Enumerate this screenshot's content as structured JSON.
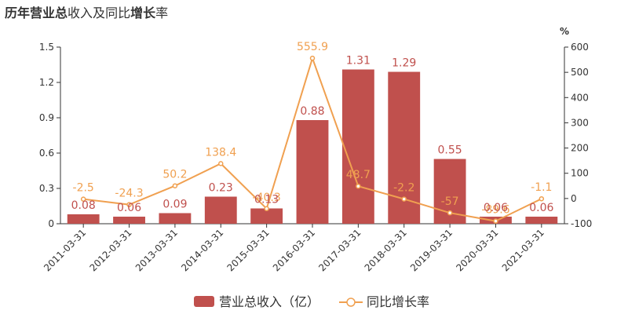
{
  "chart_data": {
    "type": "bar",
    "title": "历年营业总收入及同比增长率",
    "title_parts": [
      {
        "text": "历年",
        "bold": true
      },
      {
        "text": "营业总",
        "bold": true
      },
      {
        "text": "收入",
        "bold": false
      },
      {
        "text": "及",
        "bold": false
      },
      {
        "text": "同比",
        "bold": false
      },
      {
        "text": "增长",
        "bold": true
      },
      {
        "text": "率",
        "bold": false
      }
    ],
    "categories": [
      "2011-03-31",
      "2012-03-31",
      "2013-03-31",
      "2014-03-31",
      "2015-03-31",
      "2016-03-31",
      "2017-03-31",
      "2018-03-31",
      "2019-03-31",
      "2020-03-31",
      "2021-03-31"
    ],
    "series": [
      {
        "name": "营业总收入（亿）",
        "type": "bar",
        "axis": "left",
        "color": "#c0504d",
        "values": [
          0.08,
          0.06,
          0.09,
          0.23,
          0.13,
          0.88,
          1.31,
          1.29,
          0.55,
          0.06,
          0.06
        ],
        "labels": [
          "0.08",
          "0.06",
          "0.09",
          "0.23",
          "0.13",
          "0.88",
          "1.31",
          "1.29",
          "0.55",
          "0.06",
          "0.06"
        ]
      },
      {
        "name": "同比增长率",
        "type": "line",
        "axis": "right",
        "color": "#f0a050",
        "values": [
          -2.5,
          -24.3,
          50.2,
          138.4,
          -40.3,
          555.9,
          48.7,
          -2.2,
          -57,
          -89.6,
          -1.1
        ],
        "labels": [
          "-2.5",
          "-24.3",
          "50.2",
          "138.4",
          "-40.3",
          "555.9",
          "48.7",
          "-2.2",
          "-57",
          "-89.6",
          "-1.1"
        ]
      }
    ],
    "y_left": {
      "min": 0,
      "max": 1.5,
      "ticks": [
        "0",
        "0.3",
        "0.6",
        "0.9",
        "1.2",
        "1.5"
      ]
    },
    "y_right": {
      "min": -100,
      "max": 600,
      "unit": "%",
      "ticks": [
        "-100",
        "0",
        "100",
        "200",
        "300",
        "400",
        "500",
        "600"
      ]
    },
    "grid": false,
    "legend_position": "bottom-center"
  }
}
